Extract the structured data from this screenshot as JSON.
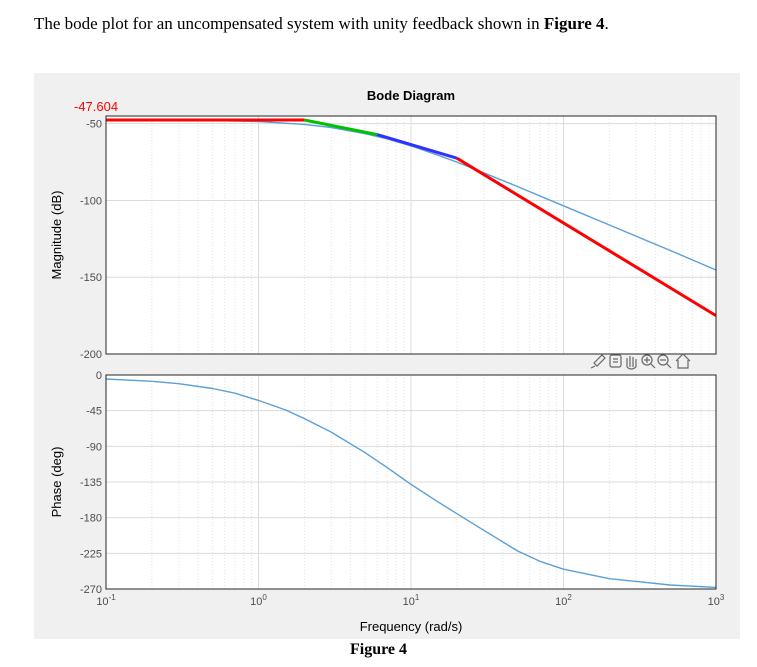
{
  "intro": {
    "text_before": "The bode plot for an uncompensated system with unity feedback shown in ",
    "figure_ref": "Figure 4",
    "text_after": "."
  },
  "caption": "Figure 4",
  "chart_data": [
    {
      "type": "line",
      "title": "Bode Diagram",
      "xlabel": "",
      "ylabel": "Magnitude (dB)",
      "xscale": "log",
      "xlim": [
        0.1,
        1000
      ],
      "ylim": [
        -200,
        -45
      ],
      "yticks": [
        "-50",
        "-100",
        "-150",
        "-200"
      ],
      "grid": true,
      "annotation": "-47.604",
      "series": [
        {
          "color": "#5aa0d8",
          "x": [
            0.1,
            0.5,
            1,
            2,
            3,
            5,
            7,
            10,
            15,
            20,
            30,
            50,
            100,
            200,
            500,
            1000
          ],
          "y": [
            -47.6,
            -47.9,
            -48.6,
            -50.5,
            -52.5,
            -56.5,
            -60,
            -64.5,
            -70.5,
            -75,
            -82,
            -91,
            -103.5,
            -116,
            -132.5,
            -145.3
          ]
        },
        {
          "color": "#ff0000",
          "x": [
            0.1,
            2
          ],
          "y": [
            -47.604,
            -47.604
          ]
        },
        {
          "color": "#00c000",
          "x": [
            2,
            6
          ],
          "y": [
            -47.604,
            -57.1
          ]
        },
        {
          "color": "#3030ff",
          "x": [
            6,
            20
          ],
          "y": [
            -57.1,
            -72.5
          ]
        },
        {
          "color": "#ff0000",
          "x": [
            20,
            1000
          ],
          "y": [
            -72.5,
            -175
          ]
        }
      ]
    },
    {
      "type": "line",
      "xlabel": "Frequency (rad/s)",
      "ylabel": "Phase (deg)",
      "xscale": "log",
      "xlim": [
        0.1,
        1000
      ],
      "ylim": [
        -270,
        0
      ],
      "yticks": [
        "0",
        "-45",
        "-90",
        "-135",
        "-180",
        "-225",
        "-270"
      ],
      "xticks": [
        "10",
        "10",
        "10",
        "10",
        "10"
      ],
      "xtick_exps": [
        "-1",
        "0",
        "1",
        "2",
        "3"
      ],
      "grid": true,
      "series": [
        {
          "color": "#5aa0d8",
          "x": [
            0.1,
            0.2,
            0.3,
            0.5,
            0.7,
            1,
            1.5,
            2,
            3,
            5,
            7,
            10,
            15,
            20,
            30,
            50,
            70,
            100,
            200,
            500,
            1000
          ],
          "y": [
            -5,
            -8,
            -11,
            -17,
            -23,
            -32,
            -44,
            -55,
            -72,
            -98,
            -117,
            -138,
            -160,
            -175,
            -196,
            -222,
            -235,
            -245,
            -257,
            -265,
            -268
          ]
        }
      ]
    }
  ]
}
